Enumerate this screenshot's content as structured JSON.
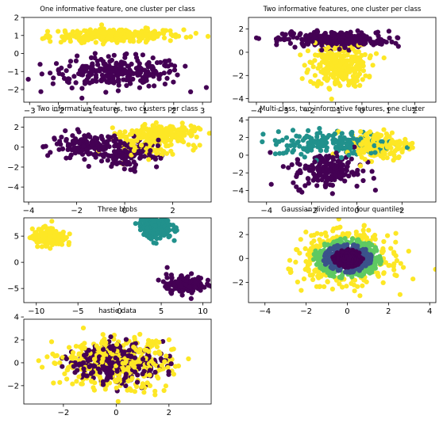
{
  "colors": {
    "purple": "#440154",
    "teal": "#21918c",
    "yellow": "#fde725",
    "blue": "#3b528b",
    "green": "#5ec962"
  },
  "chart_data": [
    {
      "type": "scatter",
      "title": "One informative feature, one cluster per class",
      "xlim": [
        -3.2,
        3.3
      ],
      "ylim": [
        -2.7,
        2.0
      ],
      "xticks": [
        -3,
        -2,
        -1,
        0,
        1,
        2,
        3
      ],
      "yticks": [
        -2,
        -1,
        0,
        1,
        2
      ],
      "clusters": [
        {
          "color": "purple",
          "cx": 0,
          "cy": -1.05,
          "sx": 1.15,
          "sy": 0.42,
          "n": 260
        },
        {
          "color": "yellow",
          "cx": 0,
          "cy": 1.0,
          "sx": 1.15,
          "sy": 0.18,
          "n": 260
        }
      ]
    },
    {
      "type": "scatter",
      "title": "Two informative features, one cluster per class",
      "xlim": [
        -4.3,
        2.8
      ],
      "ylim": [
        -4.3,
        3.0
      ],
      "xticks": [
        -4,
        -3,
        -2,
        -1,
        0,
        1,
        2
      ],
      "yticks": [
        -4,
        -2,
        0,
        2
      ],
      "clusters": [
        {
          "color": "yellow",
          "cx": -0.9,
          "cy": -1.2,
          "sx": 0.55,
          "sy": 0.9,
          "n": 260
        },
        {
          "color": "purple",
          "cx": -1.0,
          "cy": 1.1,
          "sx": 1.0,
          "sy": 0.35,
          "n": 260
        }
      ]
    },
    {
      "type": "scatter",
      "title": "Two informative features, two clusters per class",
      "xlim": [
        -4.2,
        3.6
      ],
      "ylim": [
        -5.5,
        3.0
      ],
      "xticks": [
        -4,
        -2,
        0,
        2
      ],
      "yticks": [
        -4,
        -2,
        0,
        2
      ],
      "clusters": [
        {
          "color": "purple",
          "cx": -1.6,
          "cy": 0.2,
          "sx": 0.75,
          "sy": 0.6,
          "n": 130
        },
        {
          "color": "purple",
          "cx": 0.2,
          "cy": -0.7,
          "sx": 0.6,
          "sy": 0.7,
          "n": 130
        },
        {
          "color": "yellow",
          "cx": 0.9,
          "cy": 0.5,
          "sx": 0.75,
          "sy": 0.75,
          "n": 130
        },
        {
          "color": "yellow",
          "cx": 1.6,
          "cy": 1.5,
          "sx": 0.7,
          "sy": 0.35,
          "n": 130
        }
      ]
    },
    {
      "type": "scatter",
      "title": "Multi-class, two informative features, one cluster",
      "xlim": [
        -4.8,
        3.5
      ],
      "ylim": [
        -5.3,
        4.3
      ],
      "xticks": [
        -4,
        -2,
        0,
        2
      ],
      "yticks": [
        -4,
        -2,
        0,
        2,
        4
      ],
      "clusters": [
        {
          "color": "teal",
          "cx": -1.0,
          "cy": 1.3,
          "sx": 1.3,
          "sy": 0.7,
          "n": 180
        },
        {
          "color": "purple",
          "cx": -1.3,
          "cy": -1.8,
          "sx": 0.75,
          "sy": 1.0,
          "n": 180
        },
        {
          "color": "yellow",
          "cx": 0.9,
          "cy": 1.2,
          "sx": 0.7,
          "sy": 0.8,
          "n": 180
        }
      ]
    },
    {
      "type": "scatter",
      "title": "Three blobs",
      "xlim": [
        -11.5,
        11.0
      ],
      "ylim": [
        -7.7,
        8.5
      ],
      "xticks": [
        -10,
        -5,
        0,
        5,
        10
      ],
      "yticks": [
        -5,
        0,
        5
      ],
      "clusters": [
        {
          "color": "yellow",
          "cx": -8.5,
          "cy": 4.8,
          "sx": 1.0,
          "sy": 0.85,
          "n": 180
        },
        {
          "color": "teal",
          "cx": 4.3,
          "cy": 6.7,
          "sx": 1.0,
          "sy": 1.0,
          "n": 180
        },
        {
          "color": "purple",
          "cx": 7.9,
          "cy": -4.2,
          "sx": 1.1,
          "sy": 0.9,
          "n": 180
        }
      ]
    },
    {
      "type": "scatter",
      "title": "Gaussian divided into four quantiles",
      "xlim": [
        -4.8,
        4.3
      ],
      "ylim": [
        -3.7,
        3.4
      ],
      "xticks": [
        -4,
        -2,
        0,
        2,
        4
      ],
      "yticks": [
        -2,
        0,
        2
      ],
      "gaussian_quantiles": {
        "n": 720,
        "sd": 1.0,
        "colors": [
          "purple",
          "blue",
          "green",
          "yellow"
        ],
        "radii": [
          0.76,
          1.18,
          1.67
        ]
      }
    },
    {
      "type": "scatter",
      "title": "hastie data",
      "xlim": [
        -3.5,
        3.6
      ],
      "ylim": [
        -3.6,
        3.8
      ],
      "xticks": [
        -2,
        0,
        2
      ],
      "yticks": [
        -2,
        0,
        2,
        4
      ],
      "hastie": {
        "n": 720,
        "sd": 1.0,
        "threshold": 9.34,
        "inside": "purple",
        "outside": "yellow"
      }
    }
  ]
}
